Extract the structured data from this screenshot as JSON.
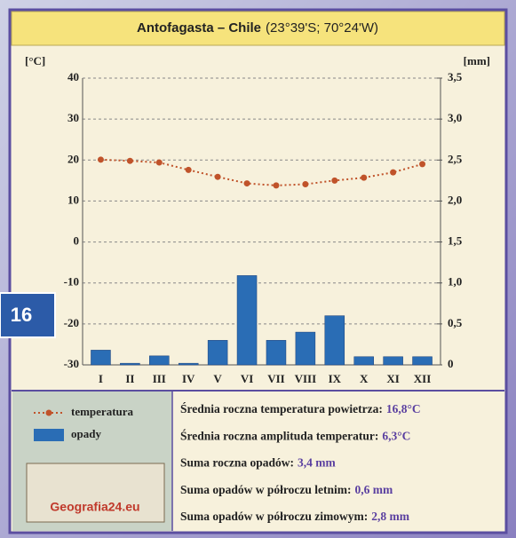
{
  "chart_data": {
    "type": "climatogram",
    "title": "Antofagasta – Chile",
    "subtitle": "(23°39'S; 70°24'W)",
    "ylabel": "[°C]",
    "y2label": "[mm]",
    "categories": [
      "I",
      "II",
      "III",
      "IV",
      "V",
      "VI",
      "VII",
      "VIII",
      "IX",
      "X",
      "XI",
      "XII"
    ],
    "series": [
      {
        "name": "temperatura",
        "type": "line",
        "color": "#c0532a",
        "axis": "y",
        "values": [
          20.1,
          19.8,
          19.4,
          17.6,
          15.9,
          14.3,
          13.8,
          14.1,
          15.0,
          15.7,
          17.0,
          19.0
        ]
      },
      {
        "name": "opady",
        "type": "bar",
        "color": "#2a6db5",
        "axis": "y2",
        "values": [
          0.18,
          0.02,
          0.11,
          0.02,
          0.3,
          1.09,
          0.3,
          0.4,
          0.6,
          0.1,
          0.1,
          0.1
        ]
      }
    ],
    "ylim": [
      -30,
      40
    ],
    "yticks": [
      -30,
      -20,
      -10,
      0,
      10,
      20,
      30,
      40
    ],
    "y2lim": [
      0,
      3.5
    ],
    "y2ticks": [
      0,
      {
        "value": 0.5,
        "label": "0,5"
      },
      {
        "value": 1.0,
        "label": "1,0"
      },
      {
        "value": 1.5,
        "label": "1,5"
      },
      {
        "value": 2.0,
        "label": "2,0"
      },
      {
        "value": 2.5,
        "label": "2,5"
      },
      {
        "value": 3.0,
        "label": "3,0"
      },
      {
        "value": 3.5,
        "label": "3,5"
      }
    ],
    "grid": true
  },
  "stats": [
    {
      "label": "Średnia roczna temperatura powietrza:",
      "value": "16,8°C"
    },
    {
      "label": "Średnia roczna amplituda temperatur:",
      "value": "6,3°C"
    },
    {
      "label": "Suma roczna opadów:",
      "value": "3,4 mm"
    },
    {
      "label": "Suma opadów w półroczu letnim:",
      "value": "0,6 mm"
    },
    {
      "label": "Suma opadów w półroczu zimowym:",
      "value": "2,8 mm"
    }
  ],
  "logo": "Geografia24.eu",
  "badge": "16"
}
